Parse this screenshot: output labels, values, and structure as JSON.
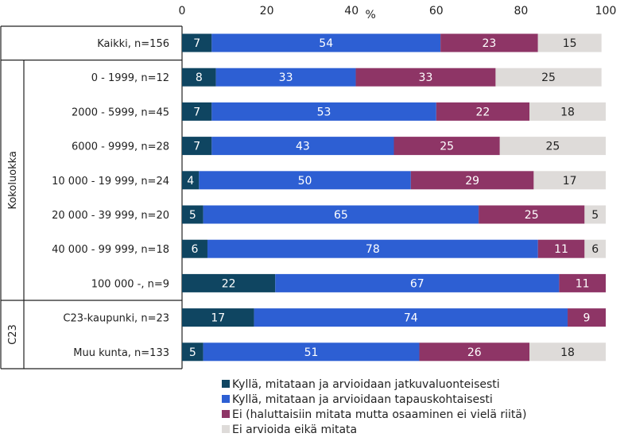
{
  "chart_data": {
    "type": "bar",
    "orientation": "horizontal",
    "stacked": true,
    "xlabel": "%",
    "xlim": [
      0,
      100
    ],
    "xticks": [
      "0",
      "20",
      "40",
      "60",
      "80",
      "100"
    ],
    "categories": [
      "Kaikki, n=156",
      "0 - 1999, n=12",
      "2000 - 5999, n=45",
      "6000 - 9999, n=28",
      "10 000 - 19 999, n=24",
      "20 000 - 39 999, n=20",
      "40 000 - 99 999, n=18",
      "100 000 -, n=9",
      "C23-kaupunki, n=23",
      "Muu kunta, n=133"
    ],
    "groups": [
      {
        "label": "",
        "start": 0,
        "end": 0
      },
      {
        "label": "Kokoluokka",
        "start": 1,
        "end": 7
      },
      {
        "label": "C23",
        "start": 8,
        "end": 9
      }
    ],
    "series": [
      {
        "name": "Kyllä, mitataan ja arvioidaan jatkuvaluonteisesti",
        "color": "#0f4561",
        "text_color": "#ffffff",
        "values": [
          7,
          8,
          7,
          7,
          4,
          5,
          6,
          22,
          17,
          5
        ]
      },
      {
        "name": "Kyllä, mitataan ja arvioidaan tapauskohtaisesti",
        "color": "#2d5fd3",
        "text_color": "#ffffff",
        "values": [
          54,
          33,
          53,
          43,
          50,
          65,
          78,
          67,
          74,
          51
        ]
      },
      {
        "name": "Ei (haluttaisiin mitata mutta osaaminen ei vielä riitä)",
        "color": "#8e3566",
        "text_color": "#ffffff",
        "values": [
          23,
          33,
          22,
          25,
          29,
          25,
          11,
          11,
          9,
          26
        ]
      },
      {
        "name": "Ei arvioida eikä mitata",
        "color": "#dedbd9",
        "text_color": "#222222",
        "values": [
          15,
          25,
          18,
          25,
          17,
          5,
          6,
          null,
          null,
          18
        ]
      }
    ],
    "legend_position": "bottom",
    "grid": false
  }
}
